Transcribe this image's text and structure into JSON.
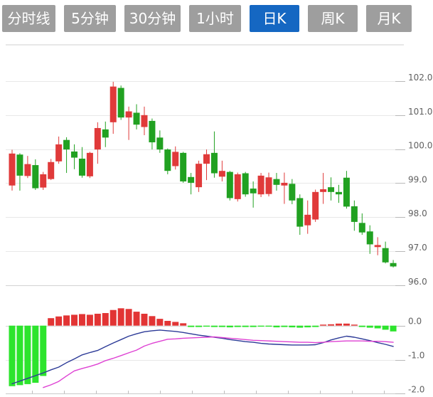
{
  "toolbar": {
    "tabs": [
      {
        "id": "time-line",
        "label": "分时线",
        "active": false
      },
      {
        "id": "5min",
        "label": "5分钟",
        "active": false
      },
      {
        "id": "30min",
        "label": "30分钟",
        "active": false
      },
      {
        "id": "1hour",
        "label": "1小时",
        "active": false
      },
      {
        "id": "daily-k",
        "label": "日K",
        "active": true
      },
      {
        "id": "weekly-k",
        "label": "周K",
        "active": false
      },
      {
        "id": "monthly-k",
        "label": "月K",
        "active": false
      }
    ]
  },
  "colors": {
    "tab_bg": "#9e9e9e",
    "tab_active_bg": "#1567c2",
    "tab_text": "#ffffff",
    "candle_up": "#e03a3a",
    "candle_down": "#21a121",
    "hist_up": "#e23434",
    "hist_down": "#2de42d",
    "dif_line": "#2c3a97",
    "dea_line": "#de41d3",
    "grid": "#e8e8e8",
    "grid_dark": "#c9c9c9",
    "axis_text": "#606060"
  },
  "chart_data": {
    "type": "candlestick",
    "title": "",
    "convention": "red-up-green-down",
    "panels": [
      {
        "name": "price",
        "ylabel_ticks": [
          "102.0",
          "101.0",
          "100.0",
          "99.0",
          "98.0",
          "97.0",
          "96.0"
        ],
        "tick_values": [
          102,
          101,
          100,
          99,
          98,
          97,
          96
        ],
        "ylim": [
          95.8,
          103.0
        ],
        "grid": true
      },
      {
        "name": "macd",
        "ylabel_ticks": [
          "0.0",
          "-1.0",
          "-2.0"
        ],
        "tick_values": [
          0,
          -1,
          -2
        ],
        "ylim": [
          -2.0,
          0.6
        ],
        "grid": true
      }
    ],
    "candles": [
      [
        98.93,
        99.98,
        98.78,
        99.87
      ],
      [
        99.84,
        99.88,
        98.78,
        99.22
      ],
      [
        99.21,
        99.8,
        99.15,
        99.56
      ],
      [
        99.53,
        99.7,
        98.8,
        98.85
      ],
      [
        98.87,
        99.33,
        98.8,
        99.26
      ],
      [
        99.12,
        99.71,
        99.09,
        99.62
      ],
      [
        99.64,
        100.37,
        99.57,
        100.14
      ],
      [
        100.27,
        100.35,
        99.3,
        99.99
      ],
      [
        99.93,
        100.14,
        99.41,
        99.75
      ],
      [
        99.72,
        100.06,
        99.16,
        99.22
      ],
      [
        99.2,
        99.92,
        99.15,
        99.89
      ],
      [
        99.99,
        100.79,
        99.57,
        100.62
      ],
      [
        100.58,
        100.81,
        100.06,
        100.34
      ],
      [
        100.79,
        101.98,
        100.45,
        101.84
      ],
      [
        101.8,
        101.87,
        100.86,
        100.93
      ],
      [
        100.93,
        101.25,
        100.27,
        101.11
      ],
      [
        101.07,
        101.32,
        100.58,
        100.72
      ],
      [
        100.65,
        101.25,
        100.41,
        101.0
      ],
      [
        100.83,
        100.9,
        99.99,
        100.2
      ],
      [
        100.34,
        100.55,
        99.89,
        99.99
      ],
      [
        99.99,
        100.02,
        99.26,
        99.36
      ],
      [
        99.5,
        100.08,
        99.4,
        99.92
      ],
      [
        99.89,
        99.92,
        99.01,
        99.05
      ],
      [
        99.18,
        99.3,
        98.67,
        99.01
      ],
      [
        98.88,
        99.66,
        98.74,
        99.57
      ],
      [
        99.57,
        99.99,
        99.09,
        99.85
      ],
      [
        99.89,
        100.52,
        99.16,
        99.29
      ],
      [
        99.19,
        99.66,
        99.05,
        99.36
      ],
      [
        99.33,
        99.36,
        98.49,
        98.56
      ],
      [
        98.53,
        99.31,
        98.46,
        99.26
      ],
      [
        99.29,
        99.33,
        98.6,
        98.67
      ],
      [
        98.84,
        99.05,
        98.28,
        98.7
      ],
      [
        98.67,
        99.3,
        98.59,
        99.22
      ],
      [
        98.68,
        99.31,
        98.61,
        99.17
      ],
      [
        99.12,
        99.3,
        98.78,
        98.95
      ],
      [
        98.93,
        99.31,
        98.39,
        99.01
      ],
      [
        98.98,
        99.12,
        98.38,
        98.49
      ],
      [
        98.56,
        98.67,
        97.48,
        97.72
      ],
      [
        97.76,
        98.49,
        97.51,
        98.07
      ],
      [
        97.93,
        98.81,
        97.86,
        98.74
      ],
      [
        98.74,
        99.3,
        98.39,
        98.82
      ],
      [
        98.88,
        99.17,
        98.49,
        98.74
      ],
      [
        98.74,
        98.95,
        98.42,
        98.67
      ],
      [
        99.16,
        99.36,
        98.25,
        98.31
      ],
      [
        98.32,
        98.49,
        97.6,
        97.86
      ],
      [
        97.83,
        98.11,
        97.48,
        97.55
      ],
      [
        97.58,
        97.76,
        96.92,
        97.2
      ],
      [
        97.12,
        97.41,
        96.88,
        97.18
      ],
      [
        97.09,
        97.28,
        96.64,
        96.67
      ],
      [
        96.65,
        96.74,
        96.52,
        96.55
      ]
    ],
    "macd": {
      "histogram": [
        -1.78,
        -1.75,
        -1.72,
        -1.68,
        -1.48,
        0.22,
        0.27,
        0.3,
        0.32,
        0.34,
        0.32,
        0.35,
        0.37,
        0.46,
        0.51,
        0.49,
        0.41,
        0.35,
        0.28,
        0.2,
        0.14,
        0.11,
        0.07,
        -0.04,
        -0.04,
        -0.03,
        -0.04,
        -0.04,
        -0.05,
        -0.04,
        -0.04,
        -0.04,
        -0.03,
        -0.03,
        -0.05,
        -0.04,
        -0.05,
        -0.06,
        -0.05,
        -0.04,
        0.03,
        0.04,
        0.06,
        0.06,
        0.03,
        -0.04,
        -0.06,
        -0.08,
        -0.12,
        -0.17
      ],
      "dif": [
        -1.71,
        -1.63,
        -1.55,
        -1.47,
        -1.39,
        -1.3,
        -1.22,
        -1.09,
        -0.98,
        -0.86,
        -0.79,
        -0.73,
        -0.62,
        -0.51,
        -0.41,
        -0.31,
        -0.24,
        -0.18,
        -0.15,
        -0.13,
        -0.15,
        -0.17,
        -0.2,
        -0.24,
        -0.28,
        -0.31,
        -0.34,
        -0.37,
        -0.41,
        -0.44,
        -0.47,
        -0.49,
        -0.52,
        -0.54,
        -0.55,
        -0.56,
        -0.57,
        -0.57,
        -0.57,
        -0.56,
        -0.5,
        -0.42,
        -0.36,
        -0.31,
        -0.34,
        -0.39,
        -0.44,
        -0.5,
        -0.55,
        -0.61
      ],
      "dea": [
        null,
        null,
        null,
        null,
        -1.82,
        -1.74,
        -1.64,
        -1.48,
        -1.33,
        -1.26,
        -1.2,
        -1.13,
        -1.03,
        -0.96,
        -0.88,
        -0.8,
        -0.72,
        -0.6,
        -0.52,
        -0.46,
        -0.4,
        -0.39,
        -0.37,
        -0.36,
        -0.35,
        -0.34,
        -0.33,
        -0.35,
        -0.37,
        -0.39,
        -0.41,
        -0.43,
        -0.44,
        -0.45,
        -0.46,
        -0.47,
        -0.48,
        -0.49,
        -0.49,
        -0.5,
        -0.49,
        -0.47,
        -0.46,
        -0.45,
        -0.45,
        -0.45,
        -0.46,
        -0.46,
        -0.47,
        -0.49
      ]
    }
  }
}
